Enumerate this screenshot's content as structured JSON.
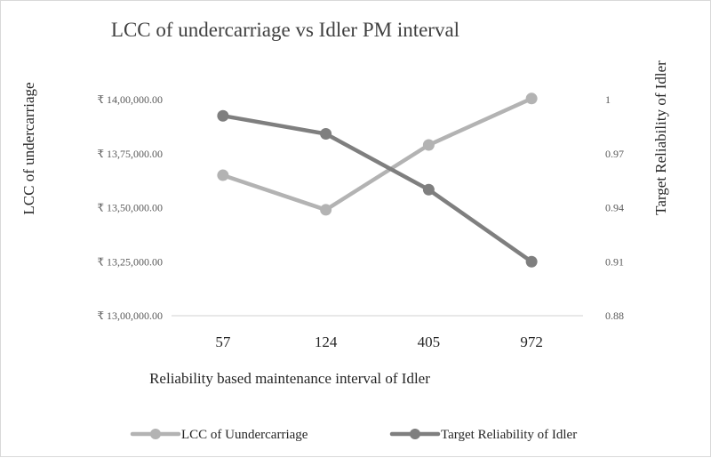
{
  "chart_data": {
    "type": "line",
    "title": "LCC of undercarriage vs Idler PM interval",
    "xlabel": "Reliability based maintenance interval of Idler",
    "ylabel": "LCC of undercarriage",
    "y2label": "Target Reliability of Idler",
    "categories": [
      "57",
      "124",
      "405",
      "972"
    ],
    "y_ticks": [
      "₹ 13,00,000.00",
      "₹ 13,25,000.00",
      "₹ 13,50,000.00",
      "₹ 13,75,000.00",
      "₹ 14,00,000.00"
    ],
    "y2_ticks": [
      "0.88",
      "0.91",
      "0.94",
      "0.97",
      "1"
    ],
    "ylim": [
      1300000,
      1400000
    ],
    "y2lim": [
      0.88,
      1.0
    ],
    "grid": false,
    "legend": "bottom",
    "series": [
      {
        "name": "LCC of Uundercarriage",
        "axis": "left",
        "color": "#b3b3b3",
        "values": [
          1365000,
          1349000,
          1379000,
          1400500
        ]
      },
      {
        "name": "Target Reliability of Idler",
        "axis": "right",
        "color": "#7f7f7f",
        "values": [
          0.991,
          0.981,
          0.95,
          0.91
        ]
      }
    ]
  }
}
